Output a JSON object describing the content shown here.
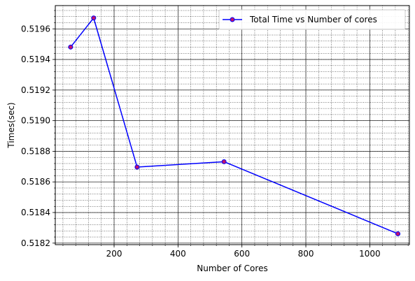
{
  "chart_data": {
    "type": "line",
    "title": "",
    "xlabel": "Number of Cores",
    "ylabel": "Times(sec)",
    "xlim": [
      16,
      1124
    ],
    "ylim": [
      0.51819,
      0.519752
    ],
    "xticks": [
      200,
      400,
      600,
      800,
      1000
    ],
    "yticks": [
      0.5182,
      0.5184,
      0.5186,
      0.5188,
      0.519,
      0.5192,
      0.5194,
      0.5196
    ],
    "xminor_step": 40,
    "yminor_step": 4e-05,
    "grid": true,
    "legend_position": "upper-right",
    "series": [
      {
        "name": "Total Time vs Number of cores",
        "line_color": "#0000ff",
        "marker": "circle",
        "marker_face": "#c0136e",
        "marker_edge": "#0000ff",
        "x": [
          64,
          136,
          272,
          544,
          1088
        ],
        "y": [
          0.519481,
          0.519671,
          0.518697,
          0.518732,
          0.518261
        ]
      }
    ]
  }
}
